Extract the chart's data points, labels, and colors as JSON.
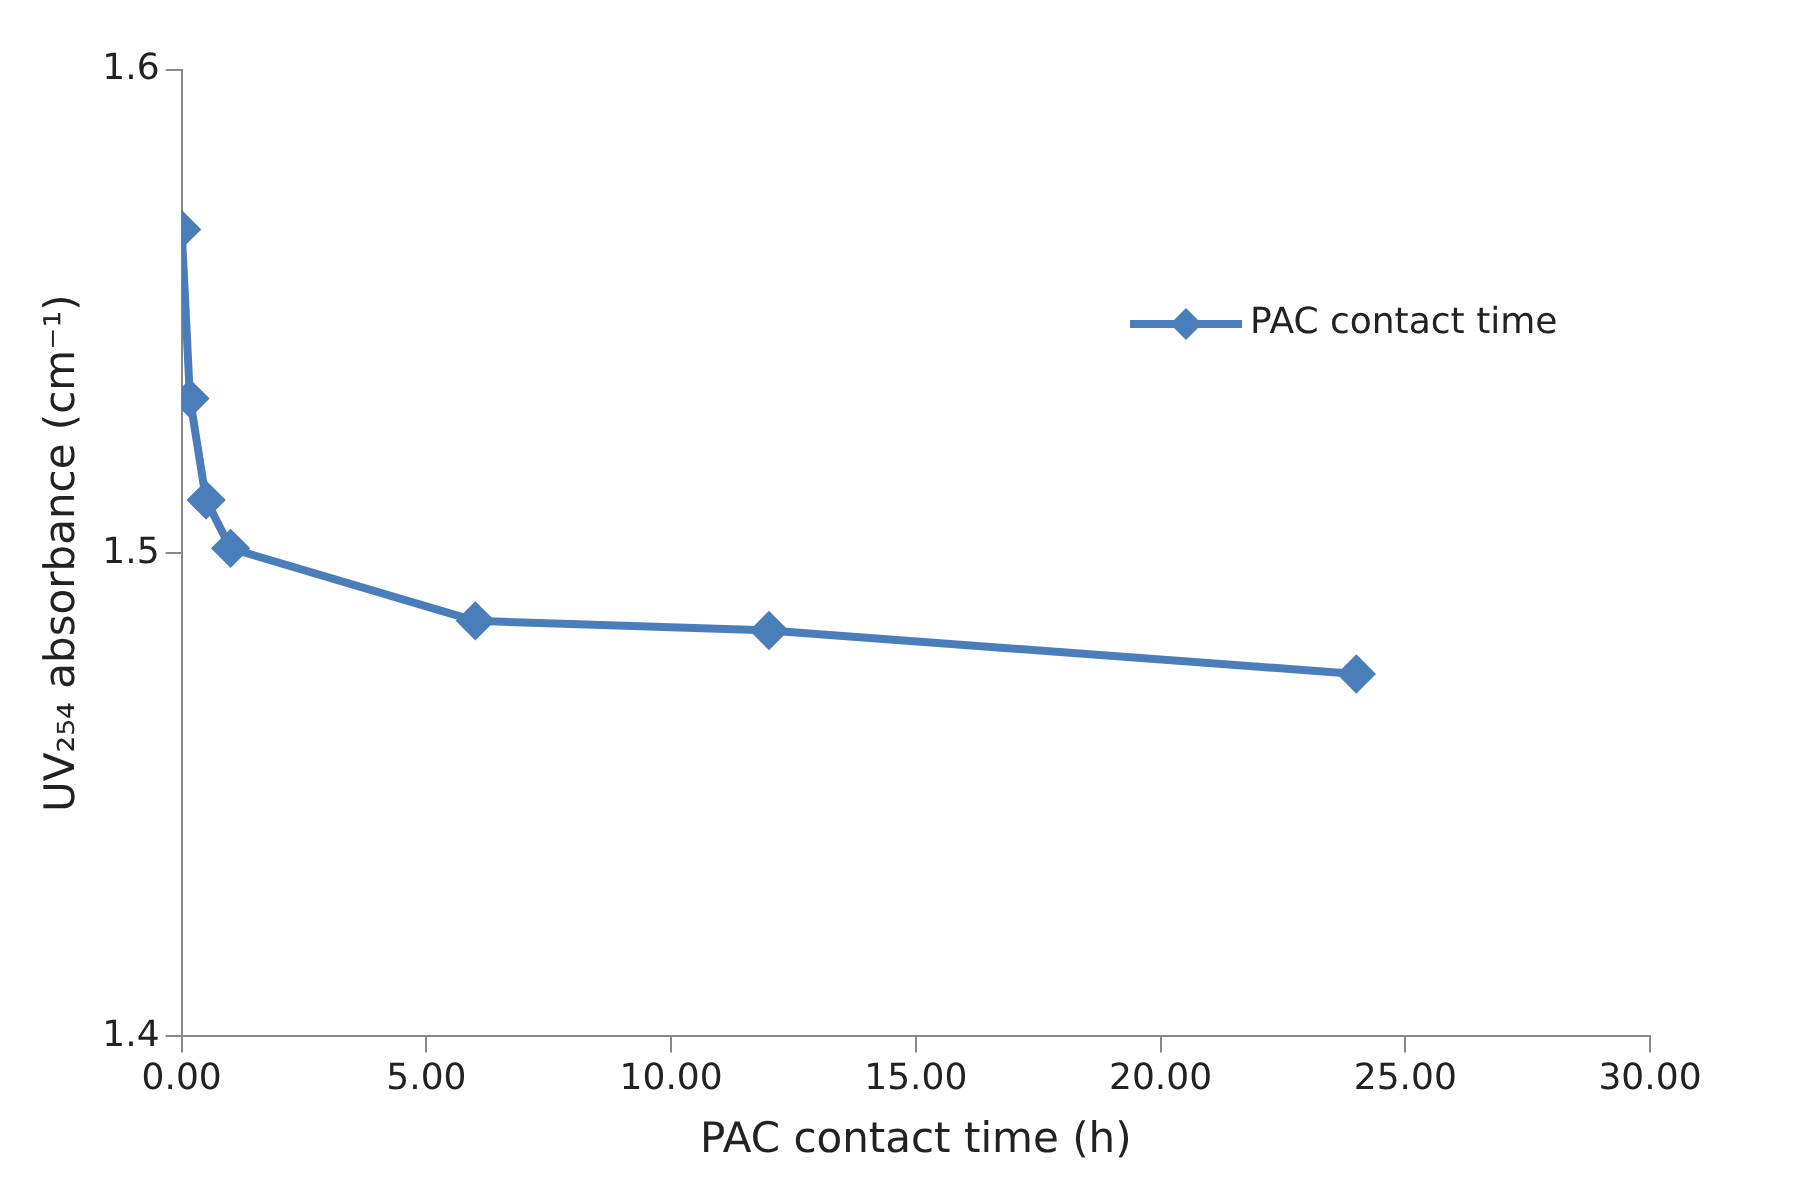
{
  "chart_data": {
    "type": "line",
    "xlabel": "PAC contact time (h)",
    "ylabel": "UV₂₅₄ absorbance (cm⁻¹)",
    "series": [
      {
        "name": "PAC contact time",
        "color": "#4a7ebb",
        "x": [
          0,
          0.17,
          0.5,
          1,
          6,
          12,
          24
        ],
        "values": [
          1.567,
          1.532,
          1.511,
          1.501,
          1.486,
          1.484,
          1.475
        ]
      }
    ],
    "xlim": [
      0,
      30
    ],
    "xticks": [
      {
        "value": 0,
        "label": "0.00"
      },
      {
        "value": 5,
        "label": "5.00"
      },
      {
        "value": 10,
        "label": "10.00"
      },
      {
        "value": 15,
        "label": "15.00"
      },
      {
        "value": 20,
        "label": "20.00"
      },
      {
        "value": 25,
        "label": "25.00"
      },
      {
        "value": 30,
        "label": "30.00"
      }
    ],
    "ylim": [
      1.4,
      1.6
    ],
    "yticks": [
      1.4,
      1.5,
      1.6
    ],
    "grid": false,
    "legend": "top right",
    "marker": "diamond",
    "line_style": "solid"
  }
}
